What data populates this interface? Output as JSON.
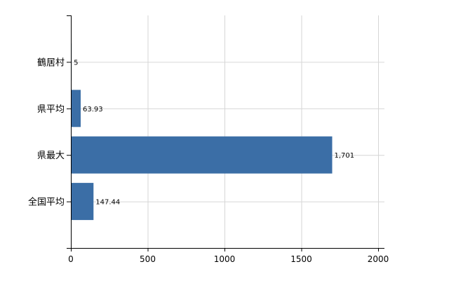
{
  "chart_data": {
    "type": "bar",
    "orientation": "horizontal",
    "categories": [
      "鶴居村",
      "県平均",
      "県最大",
      "全国平均"
    ],
    "values": [
      5,
      63.93,
      1701,
      147.44
    ],
    "data_labels": [
      "5",
      "63.93",
      "1,701",
      "147.44"
    ],
    "xlim": [
      0,
      2000
    ],
    "xticks": [
      "0",
      "500",
      "1000",
      "1500",
      "2000"
    ],
    "grid": true,
    "bar_color": "#3b6ea6"
  }
}
